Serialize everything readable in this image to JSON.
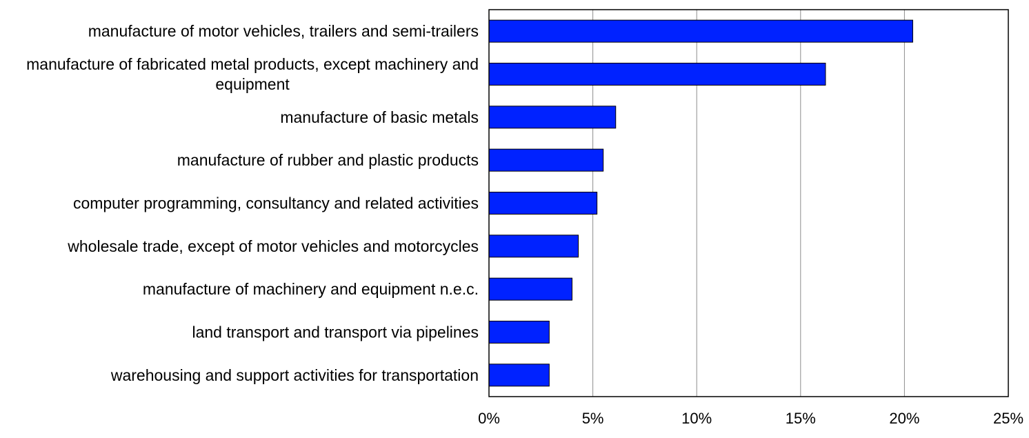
{
  "chart_data": {
    "type": "bar",
    "orientation": "horizontal",
    "title": "",
    "xlabel": "",
    "ylabel": "",
    "categories": [
      "manufacture of motor vehicles, trailers and semi-trailers",
      "manufacture of fabricated metal products, except machinery and equipment",
      "manufacture of basic metals",
      "manufacture of rubber and plastic products",
      "computer programming, consultancy and related activities",
      "wholesale trade, except of motor vehicles and motorcycles",
      "manufacture of machinery and equipment n.e.c.",
      "land transport and transport via pipelines",
      "warehousing and support activities for transportation"
    ],
    "values": [
      20.4,
      16.2,
      6.1,
      5.5,
      5.2,
      4.3,
      4.0,
      2.9,
      2.9
    ],
    "xlim": [
      0,
      25
    ],
    "xticks": [
      0,
      5,
      10,
      15,
      20,
      25
    ],
    "xtick_labels": [
      "0%",
      "5%",
      "10%",
      "15%",
      "20%",
      "25%"
    ],
    "grid": "vertical",
    "legend": "none",
    "colors": {
      "bar": "#0022ff",
      "bar_edge": "#000000",
      "grid": "#8c8c8c"
    }
  }
}
